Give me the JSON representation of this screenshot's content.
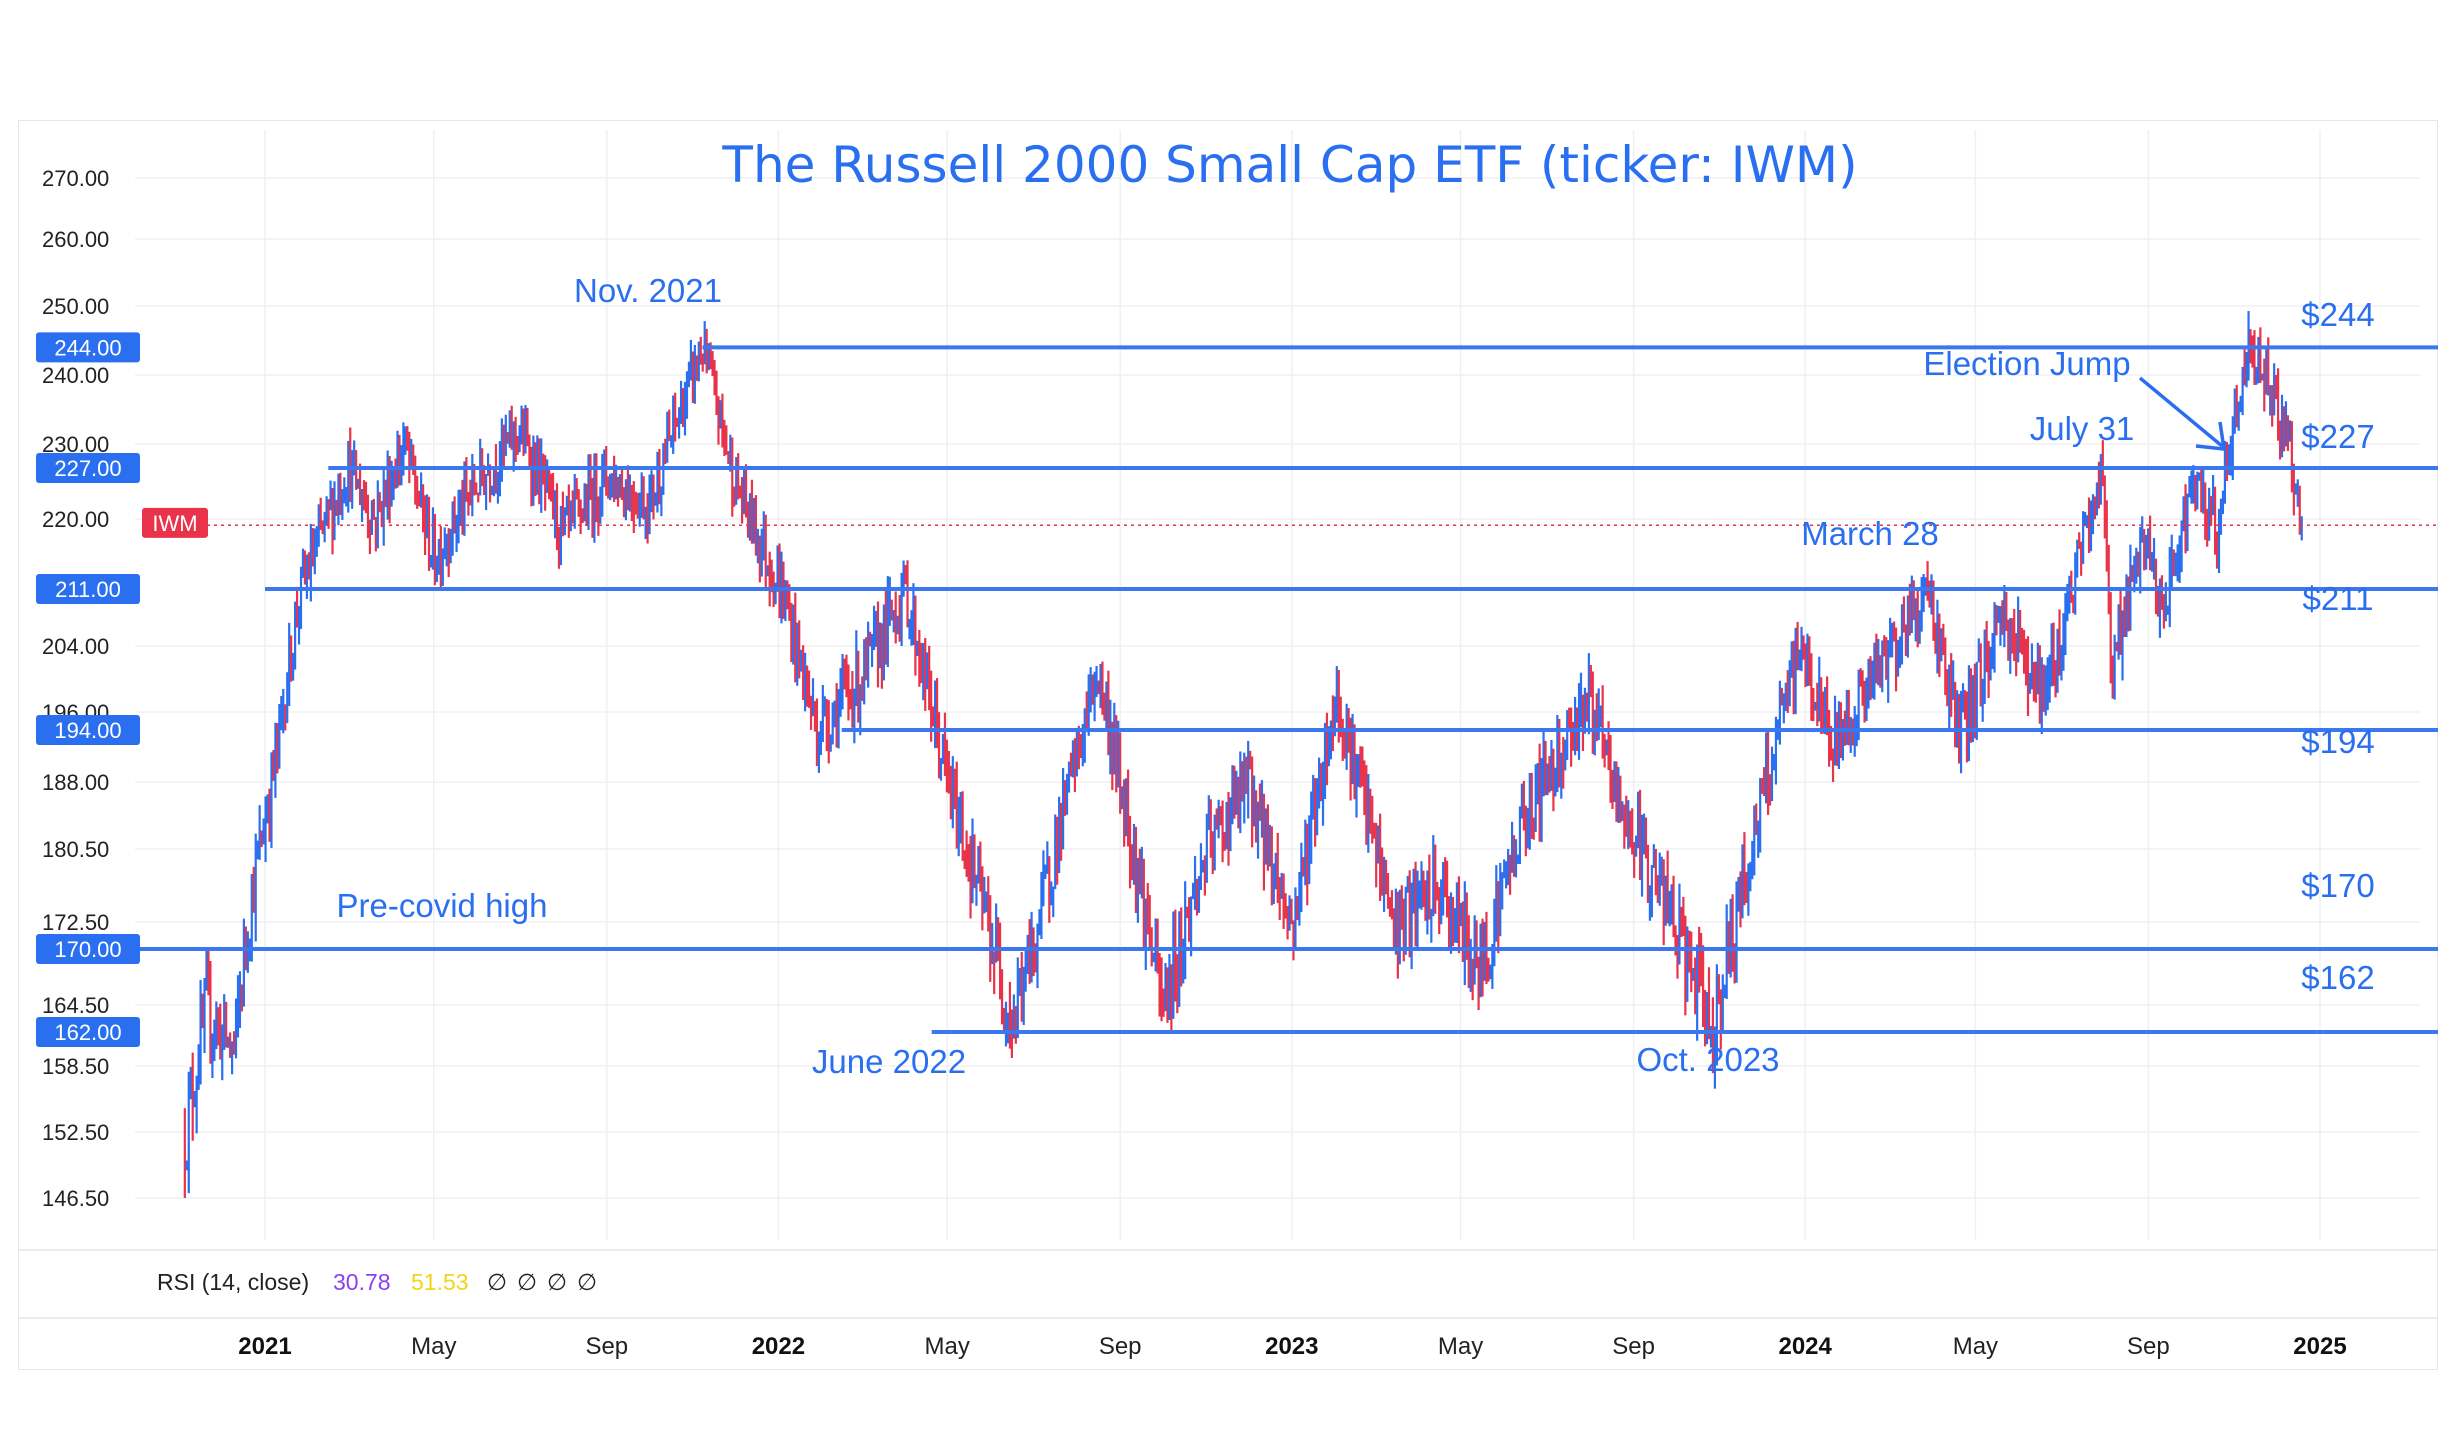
{
  "chart_data": {
    "type": "candlestick",
    "title": "The Russell 2000 Small Cap ETF (ticker: IWM)",
    "y_axis": {
      "ticks": [
        "270.00",
        "260.00",
        "250.00",
        "240.00",
        "230.00",
        "220.00",
        "204.00",
        "196.00",
        "188.00",
        "180.50",
        "172.50",
        "164.50",
        "158.50",
        "152.50",
        "146.50"
      ],
      "tick_values": [
        270,
        260,
        250,
        240,
        230,
        220,
        204,
        196,
        188,
        180.5,
        172.5,
        164.5,
        158.5,
        152.5,
        146.5
      ]
    },
    "x_axis": {
      "ticks": [
        {
          "label": "2021",
          "bold": true
        },
        {
          "label": "May",
          "bold": false
        },
        {
          "label": "Sep",
          "bold": false
        },
        {
          "label": "2022",
          "bold": true
        },
        {
          "label": "May",
          "bold": false
        },
        {
          "label": "Sep",
          "bold": false
        },
        {
          "label": "2023",
          "bold": true
        },
        {
          "label": "May",
          "bold": false
        },
        {
          "label": "Sep",
          "bold": false
        },
        {
          "label": "2024",
          "bold": true
        },
        {
          "label": "May",
          "bold": false
        },
        {
          "label": "Sep",
          "bold": false
        },
        {
          "label": "2025",
          "bold": true
        }
      ]
    },
    "levels": [
      {
        "value": 244,
        "badge": "244.00",
        "label": "$244"
      },
      {
        "value": 227,
        "badge": "227.00",
        "label": "$227"
      },
      {
        "value": 211,
        "badge": "211.00",
        "label": "$211"
      },
      {
        "value": 194,
        "badge": "194.00",
        "label": "$194"
      },
      {
        "value": 170,
        "badge": "170.00",
        "label": "$170"
      },
      {
        "value": 162,
        "badge": "162.00",
        "label": "$162"
      }
    ],
    "current_price_badge": "IWM",
    "annotations": [
      {
        "text": "Nov. 2021"
      },
      {
        "text": "Election Jump"
      },
      {
        "text": "July 31"
      },
      {
        "text": "March 28"
      },
      {
        "text": "Pre-covid high"
      },
      {
        "text": "June 2022"
      },
      {
        "text": "Oct. 2023"
      }
    ],
    "price_path": [
      {
        "x": "2020-11-05",
        "y": 152
      },
      {
        "x": "2020-11-20",
        "y": 164
      },
      {
        "x": "2020-12-10",
        "y": 160
      },
      {
        "x": "2020-12-20",
        "y": 173
      },
      {
        "x": "2021-01-10",
        "y": 192
      },
      {
        "x": "2021-01-25",
        "y": 210
      },
      {
        "x": "2021-02-10",
        "y": 218
      },
      {
        "x": "2021-03-01",
        "y": 227
      },
      {
        "x": "2021-03-20",
        "y": 220
      },
      {
        "x": "2021-04-10",
        "y": 230
      },
      {
        "x": "2021-05-01",
        "y": 215
      },
      {
        "x": "2021-06-01",
        "y": 225
      },
      {
        "x": "2021-07-01",
        "y": 232
      },
      {
        "x": "2021-08-01",
        "y": 218
      },
      {
        "x": "2021-09-01",
        "y": 226
      },
      {
        "x": "2021-10-01",
        "y": 222
      },
      {
        "x": "2021-11-08",
        "y": 244
      },
      {
        "x": "2021-12-01",
        "y": 225
      },
      {
        "x": "2022-01-05",
        "y": 210
      },
      {
        "x": "2022-01-28",
        "y": 194
      },
      {
        "x": "2022-03-01",
        "y": 200
      },
      {
        "x": "2022-04-01",
        "y": 211
      },
      {
        "x": "2022-05-01",
        "y": 188
      },
      {
        "x": "2022-06-16",
        "y": 163
      },
      {
        "x": "2022-07-01",
        "y": 170
      },
      {
        "x": "2022-08-16",
        "y": 201
      },
      {
        "x": "2022-09-01",
        "y": 188
      },
      {
        "x": "2022-10-01",
        "y": 164
      },
      {
        "x": "2022-11-01",
        "y": 180
      },
      {
        "x": "2022-12-01",
        "y": 188
      },
      {
        "x": "2023-01-01",
        "y": 172
      },
      {
        "x": "2023-02-02",
        "y": 198
      },
      {
        "x": "2023-03-15",
        "y": 172
      },
      {
        "x": "2023-04-15",
        "y": 176
      },
      {
        "x": "2023-05-15",
        "y": 168
      },
      {
        "x": "2023-06-15",
        "y": 184
      },
      {
        "x": "2023-07-31",
        "y": 198
      },
      {
        "x": "2023-08-20",
        "y": 186
      },
      {
        "x": "2023-09-20",
        "y": 176
      },
      {
        "x": "2023-10-27",
        "y": 162
      },
      {
        "x": "2023-11-20",
        "y": 178
      },
      {
        "x": "2023-12-28",
        "y": 204
      },
      {
        "x": "2024-01-20",
        "y": 192
      },
      {
        "x": "2024-03-28",
        "y": 211
      },
      {
        "x": "2024-04-20",
        "y": 193
      },
      {
        "x": "2024-05-20",
        "y": 208
      },
      {
        "x": "2024-06-20",
        "y": 198
      },
      {
        "x": "2024-07-31",
        "y": 227
      },
      {
        "x": "2024-08-05",
        "y": 202
      },
      {
        "x": "2024-09-01",
        "y": 218
      },
      {
        "x": "2024-09-10",
        "y": 206
      },
      {
        "x": "2024-10-01",
        "y": 224
      },
      {
        "x": "2024-10-20",
        "y": 219
      },
      {
        "x": "2024-11-11",
        "y": 244
      },
      {
        "x": "2024-11-25",
        "y": 240
      },
      {
        "x": "2024-12-10",
        "y": 230
      },
      {
        "x": "2024-12-19",
        "y": 219
      }
    ],
    "rsi": {
      "label": "RSI (14, close)",
      "value1": "30.78",
      "value2": "51.53",
      "extras": [
        "∅",
        "∅",
        "∅",
        "∅"
      ]
    },
    "colors": {
      "up": "#2a6ff0",
      "down": "#e8334a",
      "level_line": "#3b78f0",
      "badge": "#2a6ff0",
      "current_badge": "#e8334a",
      "rsi_value1": "#8a3ff5",
      "rsi_value2": "#f2d416"
    },
    "grid": true
  }
}
